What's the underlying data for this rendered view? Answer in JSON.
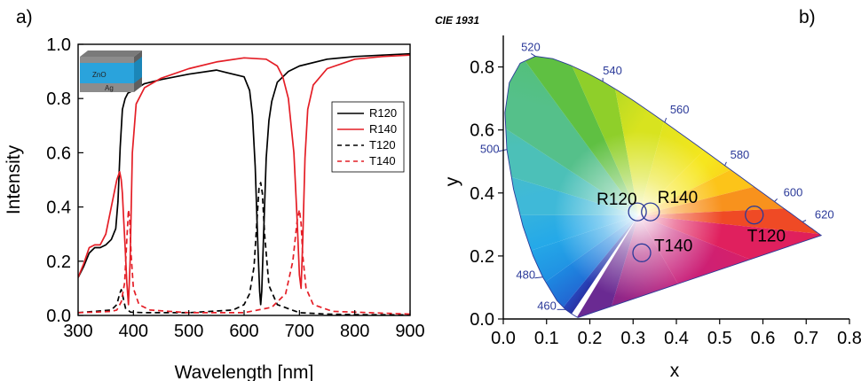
{
  "chart_data": [
    {
      "panel": "a)",
      "type": "line",
      "xlabel": "Wavelength [nm]",
      "ylabel": "Intensity",
      "xlim": [
        300,
        900
      ],
      "ylim": [
        0,
        1.0
      ],
      "xticks": [
        300,
        400,
        500,
        600,
        700,
        800,
        900
      ],
      "yticks": [
        0.0,
        0.2,
        0.4,
        0.6,
        0.8,
        1.0
      ],
      "grid": false,
      "legend_position": "right",
      "inset_labels": [
        "ZnO",
        "Ag"
      ],
      "series": [
        {
          "name": "R120",
          "color": "#000000",
          "dash": "solid",
          "x": [
            300,
            310,
            320,
            330,
            340,
            350,
            360,
            368,
            372,
            376,
            380,
            385,
            390,
            400,
            420,
            450,
            500,
            550,
            600,
            610,
            615,
            620,
            625,
            628,
            630,
            632,
            635,
            640,
            645,
            650,
            660,
            680,
            700,
            750,
            800,
            850,
            900
          ],
          "y": [
            0.14,
            0.18,
            0.23,
            0.25,
            0.25,
            0.26,
            0.28,
            0.32,
            0.42,
            0.62,
            0.76,
            0.8,
            0.82,
            0.83,
            0.855,
            0.87,
            0.89,
            0.905,
            0.88,
            0.83,
            0.74,
            0.55,
            0.25,
            0.09,
            0.04,
            0.09,
            0.28,
            0.58,
            0.72,
            0.79,
            0.86,
            0.9,
            0.92,
            0.945,
            0.955,
            0.96,
            0.965
          ]
        },
        {
          "name": "R140",
          "color": "#e41e26",
          "dash": "solid",
          "x": [
            300,
            310,
            320,
            330,
            340,
            350,
            360,
            370,
            375,
            378,
            380,
            382,
            385,
            388,
            391,
            394,
            398,
            405,
            420,
            450,
            500,
            550,
            600,
            640,
            660,
            670,
            680,
            690,
            696,
            700,
            703,
            706,
            710,
            715,
            725,
            750,
            800,
            850,
            900
          ],
          "y": [
            0.14,
            0.19,
            0.25,
            0.26,
            0.26,
            0.3,
            0.4,
            0.5,
            0.53,
            0.5,
            0.45,
            0.37,
            0.25,
            0.12,
            0.04,
            0.2,
            0.6,
            0.78,
            0.84,
            0.875,
            0.91,
            0.935,
            0.95,
            0.945,
            0.92,
            0.88,
            0.8,
            0.6,
            0.35,
            0.15,
            0.1,
            0.28,
            0.58,
            0.76,
            0.85,
            0.91,
            0.945,
            0.955,
            0.96
          ]
        },
        {
          "name": "T120",
          "color": "#000000",
          "dash": "dashed",
          "x": [
            300,
            330,
            360,
            370,
            375,
            378,
            380,
            383,
            386,
            395,
            420,
            500,
            580,
            600,
            610,
            618,
            623,
            627,
            630,
            633,
            637,
            645,
            660,
            700,
            750,
            800,
            900
          ],
          "y": [
            0.01,
            0.015,
            0.02,
            0.04,
            0.08,
            0.095,
            0.08,
            0.05,
            0.025,
            0.012,
            0.01,
            0.01,
            0.02,
            0.04,
            0.08,
            0.18,
            0.34,
            0.47,
            0.49,
            0.45,
            0.3,
            0.11,
            0.04,
            0.01,
            0.005,
            0.003,
            0.002
          ]
        },
        {
          "name": "T140",
          "color": "#e41e26",
          "dash": "dashed",
          "x": [
            300,
            330,
            360,
            370,
            378,
            384,
            388,
            391,
            393,
            396,
            400,
            410,
            430,
            500,
            600,
            650,
            675,
            688,
            696,
            700,
            703,
            706,
            712,
            725,
            760,
            900
          ],
          "y": [
            0.01,
            0.012,
            0.015,
            0.02,
            0.05,
            0.12,
            0.28,
            0.39,
            0.36,
            0.22,
            0.1,
            0.04,
            0.02,
            0.01,
            0.01,
            0.03,
            0.08,
            0.2,
            0.35,
            0.39,
            0.34,
            0.22,
            0.1,
            0.04,
            0.015,
            0.005
          ]
        }
      ]
    },
    {
      "panel": "b)",
      "type": "scatter",
      "title": "CIE 1931",
      "xlabel": "x",
      "ylabel": "y",
      "xlim": [
        0.0,
        0.8
      ],
      "ylim": [
        0.0,
        0.9
      ],
      "xticks": [
        0.0,
        0.1,
        0.2,
        0.3,
        0.4,
        0.5,
        0.6,
        0.7,
        0.8
      ],
      "yticks": [
        0.0,
        0.2,
        0.4,
        0.6,
        0.8
      ],
      "grid": false,
      "wavelength_labels": [
        {
          "label": "460",
          "x": 0.144,
          "y": 0.03
        },
        {
          "label": "480",
          "x": 0.091,
          "y": 0.133
        },
        {
          "label": "500",
          "x": 0.008,
          "y": 0.538
        },
        {
          "label": "520",
          "x": 0.074,
          "y": 0.834
        },
        {
          "label": "540",
          "x": 0.23,
          "y": 0.754
        },
        {
          "label": "560",
          "x": 0.373,
          "y": 0.624
        },
        {
          "label": "580",
          "x": 0.512,
          "y": 0.487
        },
        {
          "label": "600",
          "x": 0.627,
          "y": 0.373
        },
        {
          "label": "620",
          "x": 0.691,
          "y": 0.308
        }
      ],
      "points": [
        {
          "label": "R120",
          "x": 0.31,
          "y": 0.34
        },
        {
          "label": "R140",
          "x": 0.34,
          "y": 0.34
        },
        {
          "label": "T140",
          "x": 0.32,
          "y": 0.21
        },
        {
          "label": "T120",
          "x": 0.58,
          "y": 0.33
        }
      ]
    }
  ],
  "colors": {
    "red": "#e41e26",
    "black": "#000000",
    "marker": "#2b3a99"
  }
}
